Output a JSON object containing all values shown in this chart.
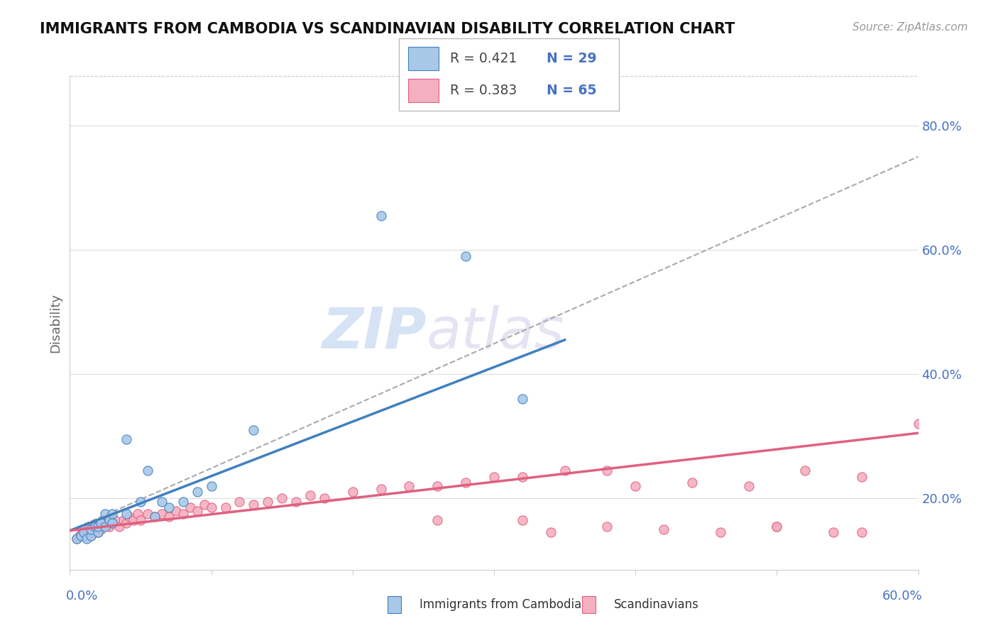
{
  "title": "IMMIGRANTS FROM CAMBODIA VS SCANDINAVIAN DISABILITY CORRELATION CHART",
  "source": "Source: ZipAtlas.com",
  "ylabel": "Disability",
  "right_yticks": [
    0.2,
    0.4,
    0.6,
    0.8
  ],
  "right_yticklabels": [
    "20.0%",
    "40.0%",
    "60.0%",
    "80.0%"
  ],
  "xlim": [
    0.0,
    0.6
  ],
  "ylim": [
    0.085,
    0.88
  ],
  "legend_r1": "R = 0.421",
  "legend_n1": "N = 29",
  "legend_r2": "R = 0.383",
  "legend_n2": "N = 65",
  "color_blue": "#a8c8e8",
  "color_pink": "#f4b0c0",
  "color_blue_line": "#4080c0",
  "color_pink_line": "#e06080",
  "watermark_zip": "ZIP",
  "watermark_atlas": "atlas",
  "blue_scatter_x": [
    0.005,
    0.008,
    0.01,
    0.012,
    0.015,
    0.015,
    0.018,
    0.02,
    0.02,
    0.022,
    0.025,
    0.025,
    0.028,
    0.03,
    0.03,
    0.04,
    0.04,
    0.05,
    0.055,
    0.06,
    0.065,
    0.07,
    0.08,
    0.09,
    0.1,
    0.13,
    0.22,
    0.28,
    0.32
  ],
  "blue_scatter_y": [
    0.135,
    0.14,
    0.145,
    0.135,
    0.14,
    0.15,
    0.155,
    0.145,
    0.155,
    0.16,
    0.155,
    0.175,
    0.165,
    0.16,
    0.175,
    0.175,
    0.295,
    0.195,
    0.245,
    0.17,
    0.195,
    0.185,
    0.195,
    0.21,
    0.22,
    0.31,
    0.655,
    0.59,
    0.36
  ],
  "pink_scatter_x": [
    0.005,
    0.007,
    0.009,
    0.011,
    0.013,
    0.015,
    0.017,
    0.018,
    0.019,
    0.02,
    0.022,
    0.025,
    0.028,
    0.03,
    0.032,
    0.035,
    0.038,
    0.04,
    0.042,
    0.045,
    0.048,
    0.05,
    0.055,
    0.06,
    0.065,
    0.07,
    0.075,
    0.08,
    0.085,
    0.09,
    0.095,
    0.1,
    0.11,
    0.12,
    0.13,
    0.14,
    0.15,
    0.16,
    0.17,
    0.18,
    0.2,
    0.22,
    0.24,
    0.26,
    0.28,
    0.3,
    0.32,
    0.35,
    0.38,
    0.4,
    0.44,
    0.48,
    0.52,
    0.56,
    0.6,
    0.34,
    0.42,
    0.46,
    0.5,
    0.54,
    0.32,
    0.26,
    0.38,
    0.5,
    0.56
  ],
  "pink_scatter_y": [
    0.135,
    0.14,
    0.145,
    0.14,
    0.15,
    0.14,
    0.155,
    0.145,
    0.155,
    0.145,
    0.15,
    0.16,
    0.155,
    0.16,
    0.165,
    0.155,
    0.165,
    0.16,
    0.17,
    0.165,
    0.175,
    0.165,
    0.175,
    0.17,
    0.175,
    0.17,
    0.18,
    0.175,
    0.185,
    0.18,
    0.19,
    0.185,
    0.185,
    0.195,
    0.19,
    0.195,
    0.2,
    0.195,
    0.205,
    0.2,
    0.21,
    0.215,
    0.22,
    0.22,
    0.225,
    0.235,
    0.235,
    0.245,
    0.245,
    0.22,
    0.225,
    0.22,
    0.245,
    0.235,
    0.32,
    0.145,
    0.15,
    0.145,
    0.155,
    0.145,
    0.165,
    0.165,
    0.155,
    0.155,
    0.145
  ],
  "blue_line_x0": 0.0,
  "blue_line_y0": 0.148,
  "blue_line_x1": 0.35,
  "blue_line_y1": 0.455,
  "pink_line_x0": 0.0,
  "pink_line_y0": 0.148,
  "pink_line_x1": 0.6,
  "pink_line_y1": 0.305,
  "dash_line_x0": 0.0,
  "dash_line_y0": 0.148,
  "dash_line_x1": 0.6,
  "dash_line_y1": 0.75
}
